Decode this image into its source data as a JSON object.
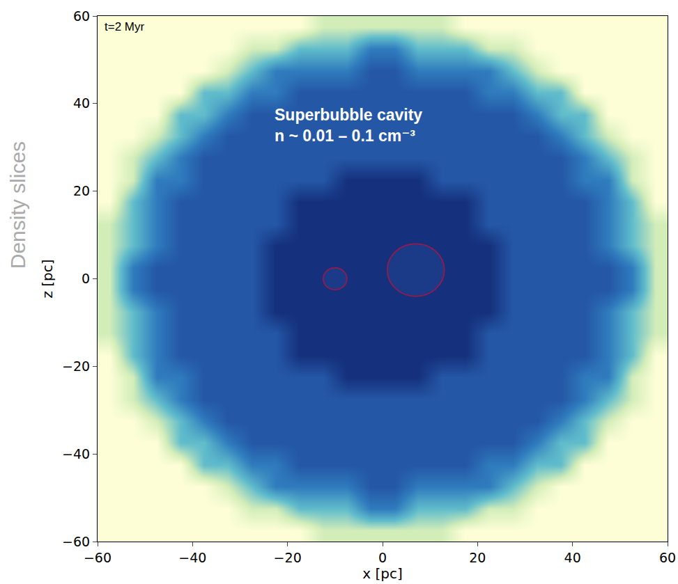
{
  "chart_data": {
    "type": "heatmap",
    "side_label": "Density slices",
    "x_label": "x [pc]",
    "y_label": "z [pc]",
    "annotations": [
      {
        "text": [
          "t=2 Myr"
        ],
        "color": "#000000"
      },
      {
        "text": [
          "Superbubble cavity",
          "n ~ 0.01 – 0.1 cm⁻³"
        ],
        "color": "#ffffff"
      }
    ],
    "grid": false,
    "xlim": [
      -60,
      60
    ],
    "ylim": [
      -60,
      60
    ],
    "xticks": [
      {
        "value": -60,
        "label": "−60"
      },
      {
        "value": -40,
        "label": "−40"
      },
      {
        "value": -20,
        "label": "−20"
      },
      0,
      20,
      40,
      60
    ],
    "yticks": [
      {
        "value": -60,
        "label": "−60"
      },
      {
        "value": -40,
        "label": "−40"
      },
      {
        "value": -20,
        "label": "−20"
      },
      0,
      20,
      40,
      60
    ],
    "x": [
      -57.5,
      -52.5,
      -47.5,
      -42.5,
      -37.5,
      -32.5,
      -27.5,
      -22.5,
      -17.5,
      -12.5,
      -7.5,
      -2.5,
      2.5,
      7.5,
      12.5,
      17.5,
      22.5,
      27.5,
      32.5,
      37.5,
      42.5,
      47.5,
      52.5,
      57.5
    ],
    "y": [
      -57.5,
      -52.5,
      -47.5,
      -42.5,
      -37.5,
      -32.5,
      -27.5,
      -22.5,
      -17.5,
      -12.5,
      -7.5,
      -2.5,
      2.5,
      7.5,
      12.5,
      17.5,
      22.5,
      27.5,
      32.5,
      37.5,
      42.5,
      47.5,
      52.5,
      57.5
    ],
    "cells": [
      [
        1,
        1,
        1,
        1,
        1,
        1,
        1,
        1,
        1,
        0.6,
        0.6,
        0.6,
        0.6,
        0.6,
        0.6,
        1,
        1,
        1,
        1,
        1,
        1,
        1,
        1,
        1
      ],
      [
        1,
        1,
        1,
        1,
        1,
        1,
        0.6,
        0.6,
        0,
        0,
        0,
        -0.7,
        -0.7,
        0,
        0,
        0,
        0.6,
        0.6,
        1,
        1,
        1,
        1,
        1,
        1
      ],
      [
        1,
        1,
        1,
        1,
        1,
        0.6,
        0,
        -0.7,
        -0.7,
        -0.7,
        -0.7,
        -1.2,
        -1.2,
        -0.7,
        -0.7,
        -0.7,
        -0.7,
        0,
        0.6,
        1,
        1,
        1,
        1,
        1
      ],
      [
        1,
        1,
        1,
        1,
        0,
        0,
        -0.7,
        -0.7,
        -1.2,
        -1.2,
        -1.2,
        -1.2,
        -1.2,
        -1.2,
        -1.2,
        -1.2,
        -0.7,
        -0.7,
        0,
        0,
        1,
        1,
        1,
        1
      ],
      [
        1,
        1,
        1,
        0,
        0,
        -0.7,
        -1.2,
        -1.2,
        -1.2,
        -1.2,
        -1.2,
        -1.2,
        -1.2,
        -1.2,
        -1.2,
        -1.2,
        -1.2,
        -1.2,
        -0.7,
        0,
        0,
        1,
        1,
        1
      ],
      [
        1,
        1,
        0.6,
        0,
        -0.7,
        -1.2,
        -1.2,
        -1.2,
        -1.2,
        -1.2,
        -1.2,
        -1.2,
        -1.2,
        -1.2,
        -1.2,
        -1.2,
        -1.2,
        -1.2,
        -1.2,
        -0.7,
        0,
        0.6,
        1,
        1
      ],
      [
        1,
        0.6,
        0,
        -0.7,
        -1.2,
        -1.2,
        -1.2,
        -1.2,
        -1.2,
        -1.2,
        -1.2,
        -1.2,
        -1.2,
        -1.2,
        -1.2,
        -1.2,
        -1.2,
        -1.2,
        -1.2,
        -1.2,
        -0.7,
        0,
        0.6,
        1
      ],
      [
        1,
        0.6,
        -0.7,
        -0.7,
        -1.2,
        -1.2,
        -1.2,
        -1.2,
        -1.2,
        -1.2,
        -1.5,
        -1.5,
        -1.5,
        -1.5,
        -1.2,
        -1.2,
        -1.2,
        -1.2,
        -1.2,
        -1.2,
        -0.7,
        -0.7,
        0.6,
        1
      ],
      [
        1,
        0,
        -0.7,
        -1.2,
        -1.2,
        -1.2,
        -1.2,
        -1.2,
        -1.5,
        -1.5,
        -1.5,
        -1.5,
        -1.5,
        -1.5,
        -1.5,
        -1.5,
        -1.2,
        -1.2,
        -1.2,
        -1.2,
        -1.2,
        -0.7,
        0,
        1
      ],
      [
        0.6,
        0,
        -0.7,
        -1.2,
        -1.2,
        -1.2,
        -1.2,
        -1.2,
        -1.5,
        -1.5,
        -1.5,
        -1.5,
        -1.5,
        -1.5,
        -1.5,
        -1.5,
        -1.2,
        -1.2,
        -1.2,
        -1.2,
        -1.2,
        -0.7,
        0,
        0.6
      ],
      [
        0.6,
        0,
        -0.7,
        -1.2,
        -1.2,
        -1.2,
        -1.2,
        -1.5,
        -1.5,
        -1.5,
        -1.5,
        -1.5,
        -1.5,
        -1.5,
        -1.5,
        -1.5,
        -1.5,
        -1.2,
        -1.2,
        -1.2,
        -1.2,
        -0.7,
        0,
        0.6
      ],
      [
        0.6,
        -0.7,
        -1.2,
        -1.2,
        -1.2,
        -1.2,
        -1.2,
        -1.5,
        -1.5,
        -1.5,
        -1.5,
        -1.5,
        -1.5,
        -1.5,
        -1.5,
        -1.5,
        -1.5,
        -1.2,
        -1.2,
        -1.2,
        -1.2,
        -1.2,
        -0.7,
        0.6
      ],
      [
        0.6,
        -0.7,
        -1.2,
        -1.2,
        -1.2,
        -1.2,
        -1.2,
        -1.5,
        -1.5,
        -1.5,
        -1.5,
        -1.5,
        -1.5,
        -1.5,
        -1.5,
        -1.5,
        -1.5,
        -1.2,
        -1.2,
        -1.2,
        -1.2,
        -1.2,
        -0.7,
        0.6
      ],
      [
        0.6,
        0,
        -0.7,
        -1.2,
        -1.2,
        -1.2,
        -1.2,
        -1.5,
        -1.5,
        -1.5,
        -1.5,
        -1.5,
        -1.5,
        -1.5,
        -1.5,
        -1.5,
        -1.5,
        -1.2,
        -1.2,
        -1.2,
        -1.2,
        -0.7,
        0,
        0.6
      ],
      [
        0.6,
        0,
        -0.7,
        -1.2,
        -1.2,
        -1.2,
        -1.2,
        -1.2,
        -1.5,
        -1.5,
        -1.5,
        -1.5,
        -1.5,
        -1.5,
        -1.5,
        -1.5,
        -1.2,
        -1.2,
        -1.2,
        -1.2,
        -1.2,
        -0.7,
        0,
        0.6
      ],
      [
        1,
        0,
        -0.7,
        -1.2,
        -1.2,
        -1.2,
        -1.2,
        -1.2,
        -1.5,
        -1.5,
        -1.5,
        -1.5,
        -1.5,
        -1.5,
        -1.5,
        -1.5,
        -1.2,
        -1.2,
        -1.2,
        -1.2,
        -1.2,
        -0.7,
        0,
        1
      ],
      [
        1,
        0.6,
        -0.7,
        -0.7,
        -1.2,
        -1.2,
        -1.2,
        -1.2,
        -1.2,
        -1.2,
        -1.5,
        -1.5,
        -1.5,
        -1.5,
        -1.2,
        -1.2,
        -1.2,
        -1.2,
        -1.2,
        -1.2,
        -0.7,
        -0.7,
        0.6,
        1
      ],
      [
        1,
        0.6,
        0,
        -0.7,
        -1.2,
        -1.2,
        -1.2,
        -1.2,
        -1.2,
        -1.2,
        -1.2,
        -1.2,
        -1.2,
        -1.2,
        -1.2,
        -1.2,
        -1.2,
        -1.2,
        -1.2,
        -1.2,
        -0.7,
        0,
        0.6,
        1
      ],
      [
        1,
        1,
        0.6,
        0,
        -0.7,
        -1.2,
        -1.2,
        -1.2,
        -1.2,
        -1.2,
        -1.2,
        -1.2,
        -1.2,
        -1.2,
        -1.2,
        -1.2,
        -1.2,
        -1.2,
        -1.2,
        -0.7,
        0,
        0.6,
        1,
        1
      ],
      [
        1,
        1,
        1,
        0,
        0,
        -0.7,
        -1.2,
        -1.2,
        -1.2,
        -1.2,
        -1.2,
        -1.2,
        -1.2,
        -1.2,
        -1.2,
        -1.2,
        -1.2,
        -1.2,
        -0.7,
        0,
        0,
        1,
        1,
        1
      ],
      [
        1,
        1,
        1,
        1,
        0,
        0,
        -0.7,
        -0.7,
        -1.2,
        -1.2,
        -1.2,
        -1.2,
        -1.2,
        -1.2,
        -1.2,
        -1.2,
        -0.7,
        -0.7,
        0,
        0,
        1,
        1,
        1,
        1
      ],
      [
        1,
        1,
        1,
        1,
        1,
        0.6,
        0,
        -0.7,
        -0.7,
        -0.7,
        -0.7,
        -1.2,
        -1.2,
        -0.7,
        -0.7,
        -0.7,
        -0.7,
        0,
        0.6,
        1,
        1,
        1,
        1,
        1
      ],
      [
        1,
        1,
        1,
        1,
        1,
        1,
        0.6,
        0.6,
        0,
        0,
        0,
        -0.7,
        -0.7,
        0,
        0,
        0,
        0.6,
        0.6,
        1,
        1,
        1,
        1,
        1,
        1
      ],
      [
        1,
        1,
        1,
        1,
        1,
        1,
        1,
        1,
        1,
        0.6,
        0.6,
        0.6,
        0.6,
        0.6,
        0.6,
        1,
        1,
        1,
        1,
        1,
        1,
        1,
        1,
        1
      ]
    ],
    "circles": [
      {
        "x": -10,
        "y": 0,
        "r": 2.5
      },
      {
        "x": 7,
        "y": 2,
        "r": 6
      }
    ]
  }
}
